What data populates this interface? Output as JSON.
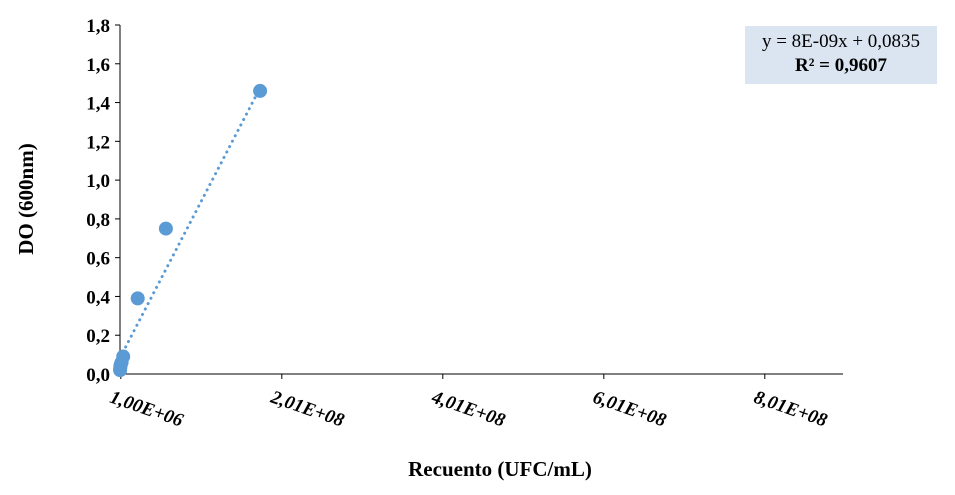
{
  "chart_data": {
    "type": "scatter",
    "xlabel": "Recuento (UFC/mL)",
    "ylabel": "DO (600nm)",
    "xlim": [
      0,
      900000000
    ],
    "ylim": [
      0,
      1.8
    ],
    "x_ticks": [
      1000000,
      201000000,
      401000000,
      601000000,
      801000000
    ],
    "x_tick_labels": [
      "1,00E+06",
      "2,01E+08",
      "4,01E+08",
      "6,01E+08",
      "8,01E+08"
    ],
    "y_ticks": [
      0,
      0.2,
      0.4,
      0.6,
      0.8,
      1.0,
      1.2,
      1.4,
      1.6,
      1.8
    ],
    "y_tick_labels": [
      "0,0",
      "0,2",
      "0,4",
      "0,6",
      "0,8",
      "1,0",
      "1,2",
      "1,4",
      "1,6",
      "1,8"
    ],
    "series": [
      {
        "color": "#5b9bd5",
        "points": [
          {
            "x": 100000,
            "y": 0.02
          },
          {
            "x": 300000,
            "y": 0.03
          },
          {
            "x": 500000,
            "y": 0.04
          },
          {
            "x": 1000000,
            "y": 0.05
          },
          {
            "x": 2000000,
            "y": 0.06
          },
          {
            "x": 4000000,
            "y": 0.09
          },
          {
            "x": 22000000,
            "y": 0.39
          },
          {
            "x": 57000000,
            "y": 0.75
          },
          {
            "x": 174000000,
            "y": 1.46
          }
        ]
      }
    ],
    "trendline": {
      "slope": 8e-09,
      "intercept": 0.0835,
      "x_range": [
        0,
        178000000
      ],
      "style": "dotted",
      "color": "#5b9bd5"
    },
    "annotation": {
      "equation": "y = 8E-09x + 0,0835",
      "r_squared": "R² = 0,9607",
      "background": "#dae5f1"
    },
    "grid": false,
    "legend": "none"
  }
}
